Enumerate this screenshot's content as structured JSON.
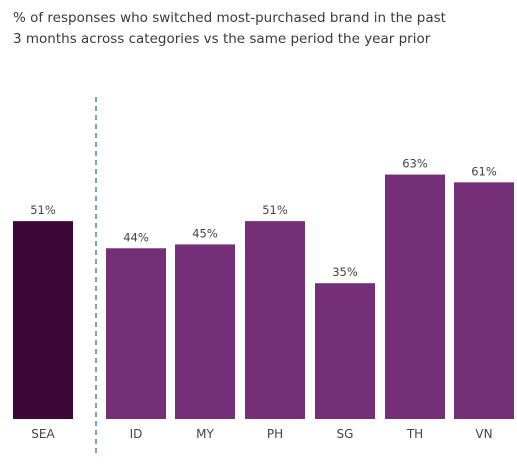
{
  "chart_data": {
    "type": "bar",
    "title_lines": [
      "% of responses who switched most-purchased brand in the past",
      "3 months across categories vs the same period the year prior"
    ],
    "categories": [
      "SEA",
      "ID",
      "MY",
      "PH",
      "SG",
      "TH",
      "VN"
    ],
    "values": [
      51,
      44,
      45,
      51,
      35,
      63,
      61
    ],
    "data_labels": [
      "51%",
      "44%",
      "45%",
      "51%",
      "35%",
      "63%",
      "61%"
    ],
    "ylim": [
      0,
      100
    ],
    "xlabel": "",
    "ylabel": "",
    "grid": false,
    "legend": "none",
    "separator_after": "SEA",
    "colors": {
      "highlight": "#3d0838",
      "bars": "#752f79",
      "separator": "#2e7a66"
    }
  }
}
